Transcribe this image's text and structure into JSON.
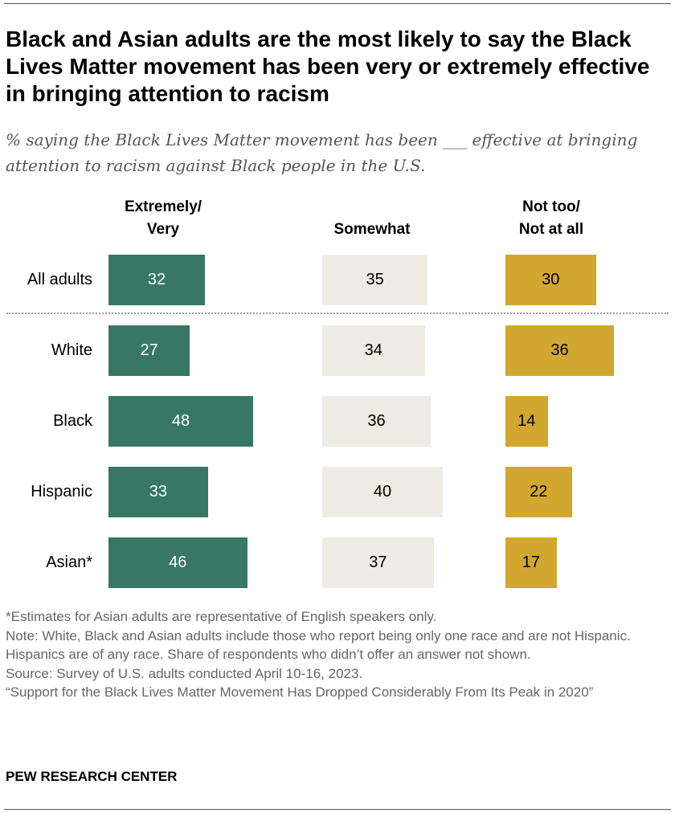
{
  "title": "Black and Asian adults are the most likely to say the Black Lives Matter movement has been very or extremely effective in bringing attention to racism",
  "subtitle": "% saying the Black Lives Matter movement has been ___ effective at bringing attention to racism against Black people in the U.S.",
  "chart_data": {
    "type": "bar",
    "orientation": "horizontal",
    "categories": [
      "All adults",
      "White",
      "Black",
      "Hispanic",
      "Asian*"
    ],
    "series": [
      {
        "name": "Extremely/ Very",
        "values": [
          32,
          27,
          48,
          33,
          46
        ],
        "color": "#387766",
        "label_color": "#ffffff"
      },
      {
        "name": "Somewhat",
        "values": [
          35,
          34,
          36,
          40,
          37
        ],
        "color": "#EEEBE3",
        "label_color": "#000000"
      },
      {
        "name": "Not too/ Not at all",
        "values": [
          30,
          36,
          14,
          22,
          17
        ],
        "color": "#D1A730",
        "label_color": "#000000"
      }
    ],
    "column_headers": [
      "Extremely/\nVery",
      "Somewhat",
      "Not too/\nNot at all"
    ],
    "divider_after_category": "All adults"
  },
  "notes": [
    "*Estimates for Asian adults are representative of English speakers only.",
    "Note: White, Black and Asian adults include those who report being only one race and are not Hispanic. Hispanics are of any race. Share of respondents who didn’t offer an answer not shown.",
    "Source: Survey of U.S. adults conducted April 10-16, 2023.",
    "“Support for the Black Lives Matter Movement Has Dropped Considerably From Its Peak in 2020”"
  ],
  "brand": "PEW RESEARCH CENTER"
}
